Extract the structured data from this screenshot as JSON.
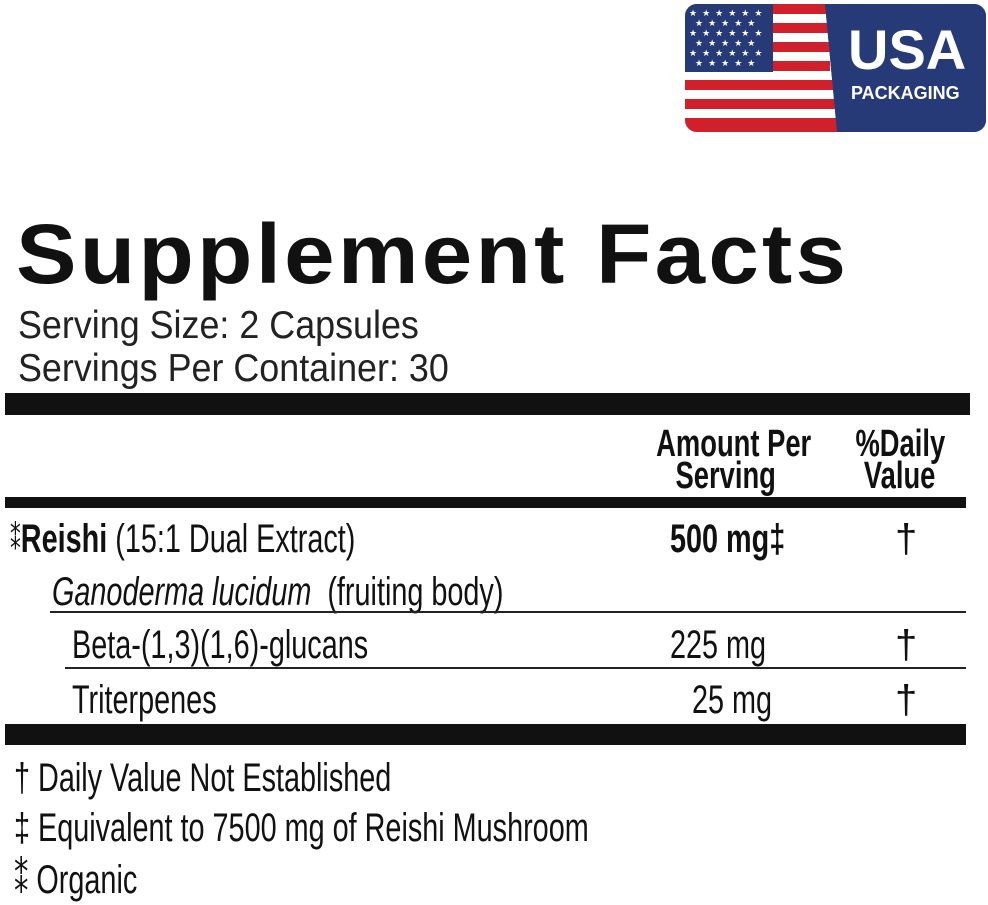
{
  "badge": {
    "title": "USA",
    "subtitle": "PACKAGING",
    "colors": {
      "blue": "#263a78",
      "red": "#d0202c",
      "white": "#ffffff"
    },
    "icon": "us-flag-icon"
  },
  "label": {
    "title": "Supplement Facts",
    "serving_size": "Serving Size: 2 Capsules",
    "servings_per_container": "Servings Per Container: 30",
    "headers": {
      "amount_line1": "Amount Per",
      "amount_line2": "Serving",
      "dv_line1": "%Daily",
      "dv_line2": "Value"
    },
    "rows": [
      {
        "mark": "⁑",
        "name": "Reishi",
        "detail": "(15:1 Dual Extract)",
        "amount": "500 mg‡",
        "dv": "†"
      },
      {
        "name_italic": "Ganoderma lucidum",
        "detail": "(fruiting body)"
      },
      {
        "name": "Beta-(1,3)(1,6)-glucans",
        "amount": "225 mg",
        "dv": "†"
      },
      {
        "name": "Triterpenes",
        "amount": "25 mg",
        "dv": "†"
      }
    ],
    "footnotes": [
      "† Daily Value Not Established",
      "‡ Equivalent to 7500 mg of Reishi Mushroom",
      "⁑ Organic"
    ]
  }
}
